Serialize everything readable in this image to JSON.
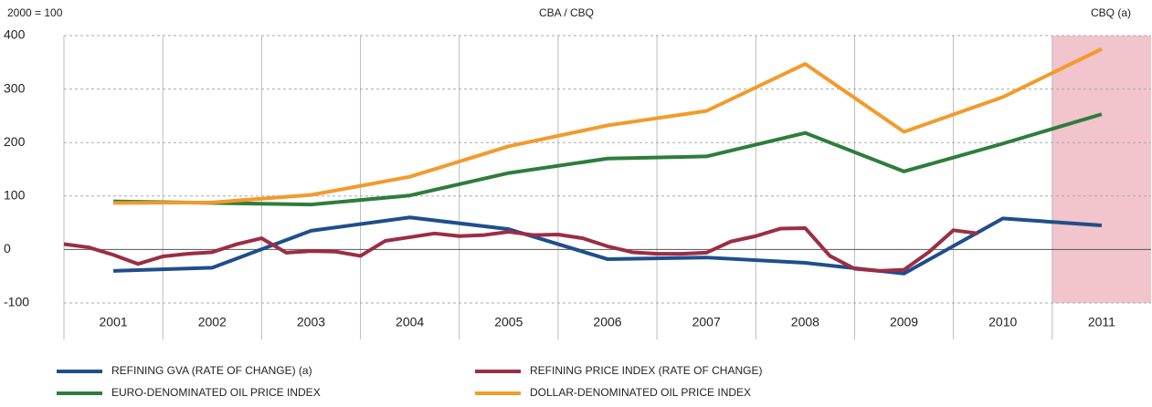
{
  "chart_data": {
    "type": "line",
    "y_unit_label": "2000 = 100",
    "center_label": "CBA / CBQ",
    "right_label": "CBQ (a)",
    "xlim": [
      2001,
      2012
    ],
    "xticks": [
      {
        "value": 2001.5,
        "label": "2001"
      },
      {
        "value": 2002.5,
        "label": "2002"
      },
      {
        "value": 2003.5,
        "label": "2003"
      },
      {
        "value": 2004.5,
        "label": "2004"
      },
      {
        "value": 2005.5,
        "label": "2005"
      },
      {
        "value": 2006.5,
        "label": "2006"
      },
      {
        "value": 2007.5,
        "label": "2007"
      },
      {
        "value": 2008.5,
        "label": "2008"
      },
      {
        "value": 2009.5,
        "label": "2009"
      },
      {
        "value": 2010.5,
        "label": "2010"
      },
      {
        "value": 2011.5,
        "label": "2011"
      }
    ],
    "ylim": [
      -100,
      400
    ],
    "yticks": [
      -100,
      0,
      100,
      200,
      300,
      400
    ],
    "grid": true,
    "shaded_xrange": [
      2011,
      2012
    ],
    "shade_color": "#f2c4cc",
    "series": [
      {
        "name": "REFINING GVA (RATE OF CHANGE) (a)",
        "color": "#1f4e8c",
        "x": [
          2001.5,
          2002.5,
          2003.5,
          2004.5,
          2005.5,
          2006.5,
          2007.5,
          2008.5,
          2009.5,
          2010.5,
          2011.5
        ],
        "values": [
          -40,
          -34,
          35,
          60,
          38,
          -18,
          -15,
          -25,
          -45,
          58,
          45
        ]
      },
      {
        "name": "REFINING PRICE INDEX (RATE OF CHANGE)",
        "color": "#9b2d45",
        "x": [
          2001,
          2001.25,
          2001.5,
          2001.75,
          2002,
          2002.25,
          2002.5,
          2002.75,
          2003,
          2003.25,
          2003.5,
          2003.75,
          2004,
          2004.25,
          2004.5,
          2004.75,
          2005,
          2005.25,
          2005.5,
          2005.75,
          2006,
          2006.25,
          2006.5,
          2006.75,
          2007,
          2007.25,
          2007.5,
          2007.75,
          2008,
          2008.25,
          2008.5,
          2008.75,
          2009,
          2009.25,
          2009.5,
          2009.75,
          2010,
          2010.25
        ],
        "values": [
          10,
          4,
          -10,
          -27,
          -13,
          -8,
          -5,
          10,
          21,
          -6,
          -3,
          -4,
          -12,
          16,
          23,
          30,
          25,
          27,
          33,
          27,
          28,
          21,
          6,
          -5,
          -8,
          -8,
          -6,
          15,
          25,
          39,
          40,
          -12,
          -36,
          -40,
          -38,
          -5,
          36,
          30
        ]
      },
      {
        "name": "EURO-DENOMINATED OIL PRICE INDEX",
        "color": "#2e7d3b",
        "x": [
          2001.5,
          2002.5,
          2003.5,
          2004.5,
          2005.5,
          2006.5,
          2007.5,
          2008.5,
          2009.5,
          2010.5,
          2011.5
        ],
        "values": [
          90,
          87,
          84,
          101,
          143,
          170,
          174,
          218,
          146,
          198,
          253
        ]
      },
      {
        "name": "DOLLAR-DENOMINATED OIL PRICE INDEX",
        "color": "#f39a2b",
        "x": [
          2001.5,
          2002.5,
          2003.5,
          2004.5,
          2005.5,
          2006.5,
          2007.5,
          2008.5,
          2009.5,
          2010.5,
          2011.5
        ],
        "values": [
          87,
          88,
          102,
          136,
          193,
          232,
          259,
          347,
          220,
          285,
          375
        ]
      }
    ]
  }
}
